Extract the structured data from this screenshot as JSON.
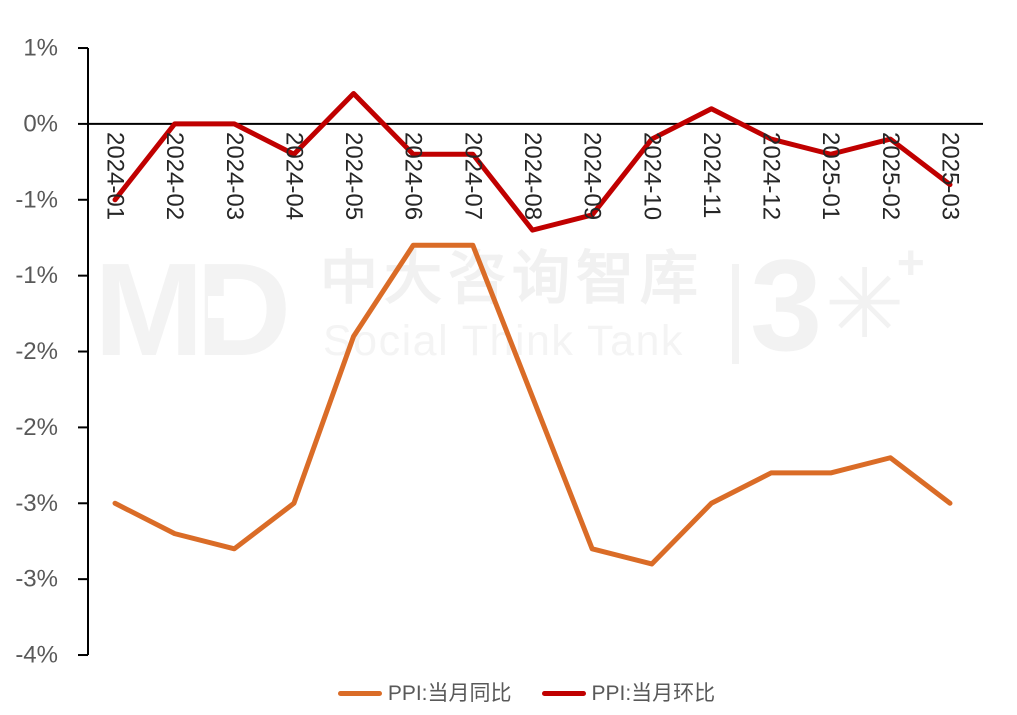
{
  "chart_data": {
    "type": "line",
    "title": "",
    "categories": [
      "2024-01",
      "2024-02",
      "2024-03",
      "2024-04",
      "2024-05",
      "2024-06",
      "2024-07",
      "2024-08",
      "2024-09",
      "2024-10",
      "2024-11",
      "2024-12",
      "2025-01",
      "2025-02",
      "2025-03"
    ],
    "series": [
      {
        "name": "PPI:当月同比",
        "color": "#DA6C27",
        "values": [
          -2.5,
          -2.7,
          -2.8,
          -2.5,
          -1.4,
          -0.8,
          -0.8,
          -1.8,
          -2.8,
          -2.9,
          -2.5,
          -2.3,
          -2.3,
          -2.2,
          -2.5
        ]
      },
      {
        "name": "PPI:当月环比",
        "color": "#C00000",
        "values": [
          -0.5,
          0.0,
          0.0,
          -0.2,
          0.2,
          -0.2,
          -0.2,
          -0.7,
          -0.6,
          -0.1,
          0.1,
          -0.1,
          -0.2,
          -0.1,
          -0.4
        ]
      }
    ],
    "y_axis": {
      "min": -3.5,
      "max": 0.5,
      "step": 0.5,
      "unit": "%",
      "ticks": [
        {
          "value": 0.5,
          "label": "1%"
        },
        {
          "value": 0.0,
          "label": "0%"
        },
        {
          "value": -0.5,
          "label": "-1%"
        },
        {
          "value": -1.0,
          "label": "-1%"
        },
        {
          "value": -1.5,
          "label": "-2%"
        },
        {
          "value": -2.0,
          "label": "-2%"
        },
        {
          "value": -2.5,
          "label": "-3%"
        },
        {
          "value": -3.0,
          "label": "-3%"
        },
        {
          "value": -3.5,
          "label": "-4%"
        }
      ]
    },
    "x_axis": {
      "label_rotation_deg": 90,
      "baseline_value": 0
    },
    "grid": false,
    "legend_position": "bottom"
  },
  "watermark": {
    "logo_text": "MD",
    "cn_title": "中大咨询智库",
    "en_subtitle": "Social Think Tank",
    "anniversary_digit": "3",
    "anniversary_star": "✳",
    "anniversary_plus": "+"
  },
  "colors": {
    "axis_line": "#000000",
    "y_tick_label": "#595959",
    "x_tick_label": "#262626",
    "legend_text": "#595959",
    "watermark": "#f2f2f2",
    "background": "#ffffff"
  }
}
